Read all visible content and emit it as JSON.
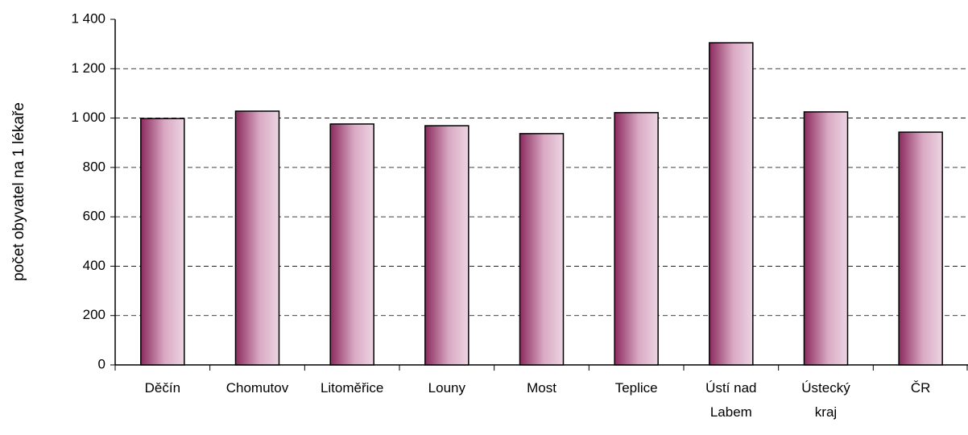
{
  "chart_data": {
    "type": "bar",
    "y_label": "počet obyvatel na 1 lékaře",
    "categories": [
      "Děčín",
      "Chomutov",
      "Litoměřice",
      "Louny",
      "Most",
      "Teplice",
      "Ústí nad Labem",
      "Ústecký kraj",
      "ČR"
    ],
    "values": [
      998,
      1028,
      976,
      969,
      937,
      1022,
      1305,
      1025,
      943
    ],
    "color": "#8b2a5e",
    "ylim": [
      0,
      1400
    ],
    "yticks": [
      0,
      200,
      400,
      600,
      800,
      {
        "value": 1000,
        "label": "1 000"
      },
      {
        "value": 1200,
        "label": "1 200"
      },
      {
        "value": 1400,
        "label": "1 400"
      }
    ],
    "grid": true
  }
}
